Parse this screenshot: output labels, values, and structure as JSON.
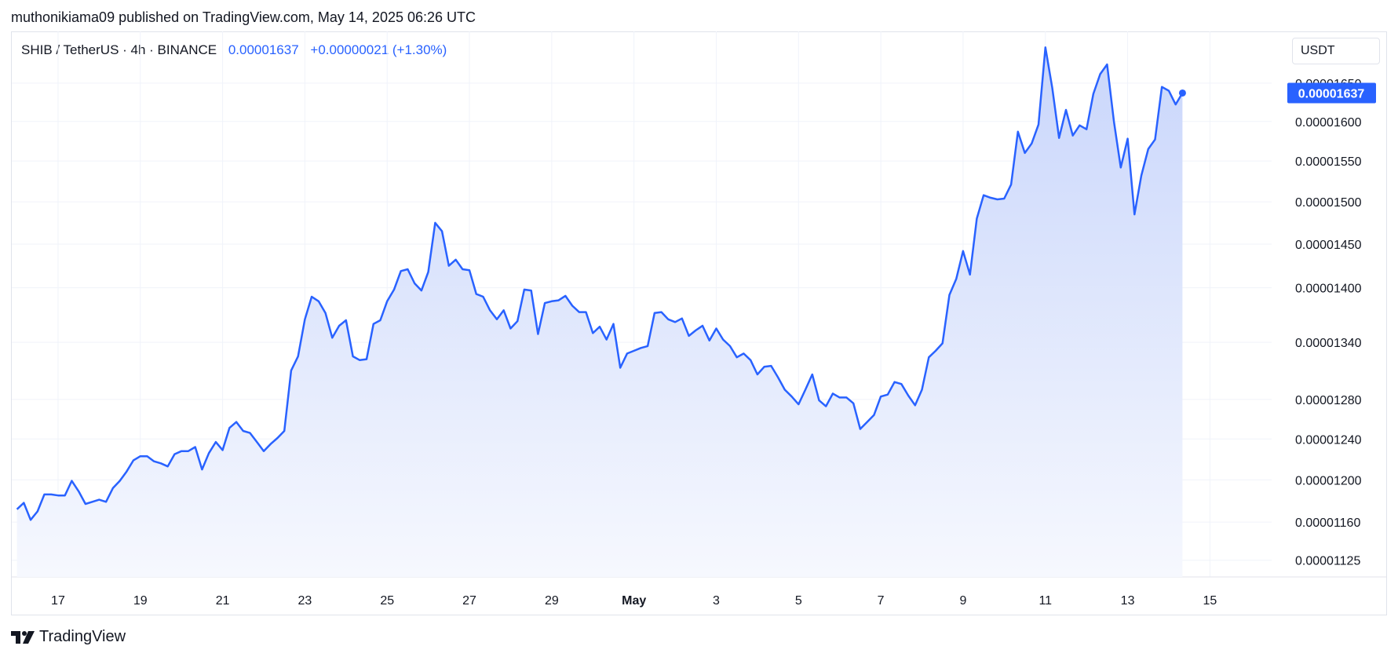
{
  "header": {
    "publisher": "muthonikiama09 published on TradingView.com, May 14, 2025 06:26 UTC"
  },
  "symbol": {
    "name": "SHIB / TetherUS · 4h · BINANCE",
    "last": "0.00001637",
    "change": "+0.00000021 (+1.30%)"
  },
  "currency_button": "USDT",
  "footer": {
    "brand": "TradingView"
  },
  "colors": {
    "line": "#2962ff",
    "fill_top": "#c9d6fb",
    "fill_bottom": "#f6f8fe",
    "grid": "#f0f3fa"
  },
  "chart_data": {
    "type": "area",
    "title": "",
    "series": [
      {
        "values": [
          1.172e-05,
          1.178e-05,
          1.162e-05,
          1.17e-05,
          1.186e-05,
          1.186e-05,
          1.185e-05,
          1.185e-05,
          1.199e-05,
          1.189e-05,
          1.177e-05,
          1.179e-05,
          1.181e-05,
          1.179e-05,
          1.192e-05,
          1.199e-05,
          1.208e-05,
          1.219e-05,
          1.223e-05,
          1.223e-05,
          1.218e-05,
          1.216e-05,
          1.213e-05,
          1.225e-05,
          1.228e-05,
          1.228e-05,
          1.232e-05,
          1.21e-05,
          1.226e-05,
          1.237e-05,
          1.229e-05,
          1.251e-05,
          1.257e-05,
          1.248e-05,
          1.246e-05,
          1.237e-05,
          1.228e-05,
          1.235e-05,
          1.241e-05,
          1.248e-05,
          1.31e-05,
          1.325e-05,
          1.365e-05,
          1.39e-05,
          1.385e-05,
          1.372e-05,
          1.345e-05,
          1.358e-05,
          1.364e-05,
          1.325e-05,
          1.321e-05,
          1.322e-05,
          1.36e-05,
          1.364e-05,
          1.385e-05,
          1.398e-05,
          1.419e-05,
          1.421e-05,
          1.405e-05,
          1.397e-05,
          1.418e-05,
          1.475e-05,
          1.465e-05,
          1.425e-05,
          1.432e-05,
          1.421e-05,
          1.42e-05,
          1.393e-05,
          1.39e-05,
          1.375e-05,
          1.365e-05,
          1.375e-05,
          1.355e-05,
          1.363e-05,
          1.398e-05,
          1.397e-05,
          1.349e-05,
          1.383e-05,
          1.385e-05,
          1.386e-05,
          1.391e-05,
          1.38e-05,
          1.373e-05,
          1.373e-05,
          1.35e-05,
          1.357e-05,
          1.343e-05,
          1.36e-05,
          1.313e-05,
          1.328e-05,
          1.331e-05,
          1.334e-05,
          1.336e-05,
          1.372e-05,
          1.373e-05,
          1.365e-05,
          1.362e-05,
          1.366e-05,
          1.347e-05,
          1.353e-05,
          1.358e-05,
          1.342e-05,
          1.355e-05,
          1.343e-05,
          1.336e-05,
          1.324e-05,
          1.328e-05,
          1.321e-05,
          1.306e-05,
          1.314e-05,
          1.315e-05,
          1.303e-05,
          1.29e-05,
          1.283e-05,
          1.275e-05,
          1.29e-05,
          1.306e-05,
          1.279e-05,
          1.273e-05,
          1.286e-05,
          1.282e-05,
          1.282e-05,
          1.276e-05,
          1.25e-05,
          1.257e-05,
          1.264e-05,
          1.283e-05,
          1.285e-05,
          1.298e-05,
          1.296e-05,
          1.284e-05,
          1.274e-05,
          1.29e-05,
          1.324e-05,
          1.331e-05,
          1.339e-05,
          1.392e-05,
          1.41e-05,
          1.442e-05,
          1.415e-05,
          1.48e-05,
          1.508e-05,
          1.505e-05,
          1.503e-05,
          1.504e-05,
          1.521e-05,
          1.587e-05,
          1.56e-05,
          1.572e-05,
          1.596e-05,
          1.698e-05,
          1.644e-05,
          1.579e-05,
          1.615e-05,
          1.582e-05,
          1.595e-05,
          1.59e-05,
          1.636e-05,
          1.662e-05,
          1.675e-05,
          1.6e-05,
          1.542e-05,
          1.578e-05,
          1.485e-05,
          1.532e-05,
          1.565e-05,
          1.577e-05,
          1.645e-05,
          1.64e-05,
          1.622e-05,
          1.637e-05
        ]
      }
    ],
    "x_start": "2025-04-16T00:00:00Z",
    "x_interval": "4h",
    "x_ticks": [
      {
        "date": "2025-04-17",
        "label": "17"
      },
      {
        "date": "2025-04-19",
        "label": "19"
      },
      {
        "date": "2025-04-21",
        "label": "21"
      },
      {
        "date": "2025-04-23",
        "label": "23"
      },
      {
        "date": "2025-04-25",
        "label": "25"
      },
      {
        "date": "2025-04-27",
        "label": "27"
      },
      {
        "date": "2025-04-29",
        "label": "29"
      },
      {
        "date": "2025-05-01",
        "label": "May"
      },
      {
        "date": "2025-05-03",
        "label": "3"
      },
      {
        "date": "2025-05-05",
        "label": "5"
      },
      {
        "date": "2025-05-07",
        "label": "7"
      },
      {
        "date": "2025-05-09",
        "label": "9"
      },
      {
        "date": "2025-05-11",
        "label": "11"
      },
      {
        "date": "2025-05-13",
        "label": "13"
      },
      {
        "date": "2025-05-15",
        "label": "15"
      }
    ],
    "y_ticks": [
      "0.00001125",
      "0.00001160",
      "0.00001200",
      "0.00001240",
      "0.00001280",
      "0.00001340",
      "0.00001400",
      "0.00001450",
      "0.00001500",
      "0.00001550",
      "0.00001600",
      "0.00001650"
    ],
    "y_scale": "log",
    "ylim": [
      1.11e-05,
      1.72e-05
    ],
    "xlim": [
      "2025-04-15T21:00:00Z",
      "2025-05-16T12:00:00Z"
    ],
    "last_value_label": "0.00001637",
    "grid": true
  }
}
